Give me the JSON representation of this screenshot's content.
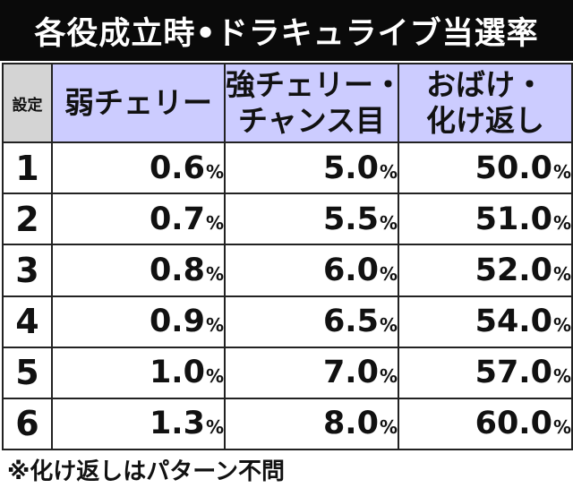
{
  "title": "各役成立時•ドラキュライブ当選率",
  "table": {
    "headers": {
      "setting": "設定",
      "col1": [
        "弱チェリー"
      ],
      "col2": [
        "強チェリー・",
        "チャンス目"
      ],
      "col3": [
        "おばけ・",
        "化け返し"
      ]
    },
    "percent_sign": "%",
    "rows": [
      {
        "setting": "1",
        "values": [
          "0.6",
          "5.0",
          "50.0"
        ]
      },
      {
        "setting": "2",
        "values": [
          "0.7",
          "5.5",
          "51.0"
        ]
      },
      {
        "setting": "3",
        "values": [
          "0.8",
          "6.0",
          "52.0"
        ]
      },
      {
        "setting": "4",
        "values": [
          "0.9",
          "6.5",
          "54.0"
        ]
      },
      {
        "setting": "5",
        "values": [
          "1.0",
          "7.0",
          "57.0"
        ]
      },
      {
        "setting": "6",
        "values": [
          "1.3",
          "8.0",
          "60.0"
        ]
      }
    ]
  },
  "footnote": "※化け返しはパターン不問",
  "colors": {
    "title_background": "#0a0a0a",
    "header_background": "#ccccff",
    "setting_header_background": "#d4d4d4"
  }
}
